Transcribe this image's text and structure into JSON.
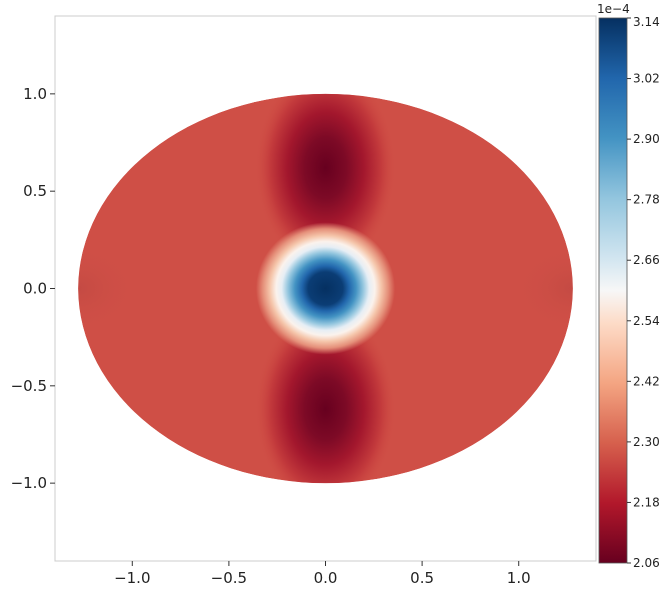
{
  "chart_data": {
    "type": "heatmap",
    "title": "",
    "xlabel": "",
    "ylabel": "",
    "xlim": [
      -1.4,
      1.4
    ],
    "ylim": [
      -1.4,
      1.4
    ],
    "x_ticks": [
      "−1.0",
      "−0.5",
      "0.0",
      "0.5",
      "1.0"
    ],
    "x_tick_values": [
      -1.0,
      -0.5,
      0.0,
      0.5,
      1.0
    ],
    "y_ticks": [
      "1.0",
      "0.5",
      "0.0",
      "−0.5",
      "−1.0"
    ],
    "y_tick_values": [
      1.0,
      0.5,
      0.0,
      -0.5,
      -1.0
    ],
    "domain": {
      "shape": "ellipse",
      "center": [
        0.0,
        0.0
      ],
      "semi_axis_x": 1.28,
      "semi_axis_y": 1.0
    },
    "colorbar": {
      "exponent_label": "1e−4",
      "min": 2.06,
      "max": 3.14,
      "colormap": "RdBu",
      "ticks": [
        "3.14",
        "3.02",
        "2.90",
        "2.78",
        "2.66",
        "2.54",
        "2.42",
        "2.30",
        "2.18",
        "2.06"
      ],
      "tick_values": [
        3.14,
        3.02,
        2.9,
        2.78,
        2.66,
        2.54,
        2.42,
        2.3,
        2.18,
        2.06
      ]
    },
    "features": [
      {
        "kind": "peak",
        "x": 0.0,
        "y": 0.0,
        "value": 3.14
      },
      {
        "kind": "trough",
        "x": 0.0,
        "y": 0.62,
        "value": 2.06
      },
      {
        "kind": "trough",
        "x": 0.0,
        "y": -0.62,
        "value": 2.06
      },
      {
        "kind": "background",
        "value": 2.26
      }
    ],
    "grid": false,
    "legend": "none"
  }
}
